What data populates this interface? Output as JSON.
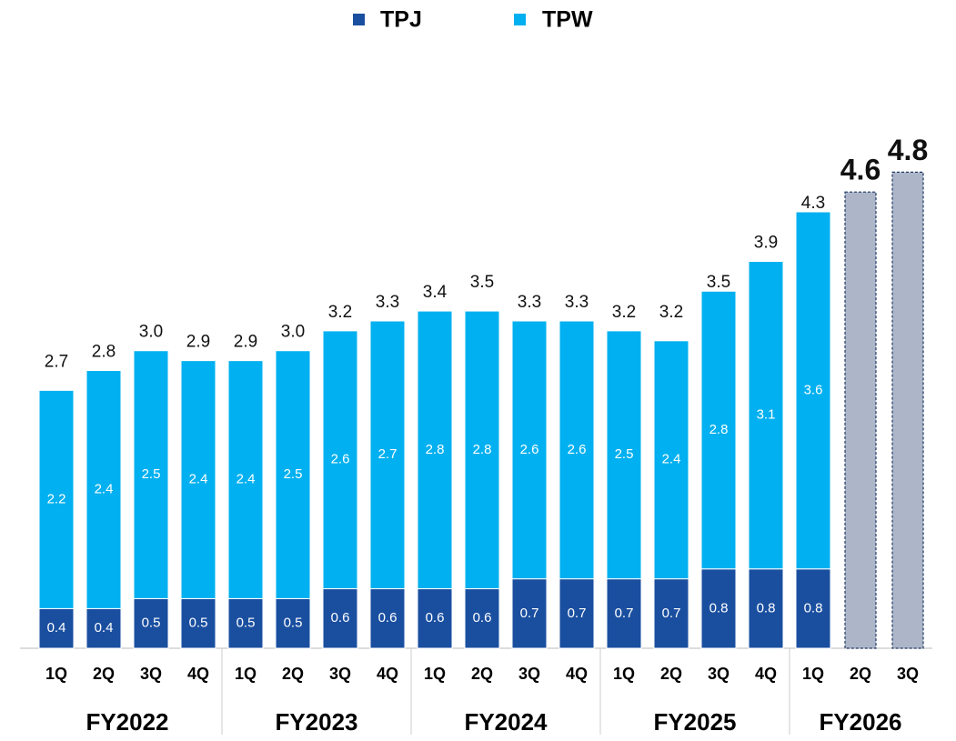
{
  "chart_data": {
    "type": "stacked_bar",
    "groups": [
      {
        "label": "FY2022",
        "categories": [
          "1Q",
          "2Q",
          "3Q",
          "4Q"
        ]
      },
      {
        "label": "FY2023",
        "categories": [
          "1Q",
          "2Q",
          "3Q",
          "4Q"
        ]
      },
      {
        "label": "FY2024",
        "categories": [
          "1Q",
          "2Q",
          "3Q",
          "4Q"
        ]
      },
      {
        "label": "FY2025",
        "categories": [
          "1Q",
          "2Q",
          "3Q",
          "4Q"
        ]
      },
      {
        "label": "FY2026",
        "categories": [
          "1Q",
          "2Q",
          "3Q"
        ]
      }
    ],
    "series": [
      {
        "name": "TPJ",
        "color": "#1a4fa0",
        "values": [
          0.4,
          0.4,
          0.5,
          0.5,
          0.5,
          0.5,
          0.6,
          0.6,
          0.6,
          0.6,
          0.7,
          0.7,
          0.7,
          0.7,
          0.8,
          0.8,
          0.8,
          null,
          null
        ]
      },
      {
        "name": "TPW",
        "color": "#00b0f0",
        "values": [
          2.2,
          2.4,
          2.5,
          2.4,
          2.4,
          2.5,
          2.6,
          2.7,
          2.8,
          2.8,
          2.6,
          2.6,
          2.5,
          2.4,
          2.8,
          3.1,
          3.6,
          null,
          null
        ]
      }
    ],
    "totals": {
      "values": [
        2.7,
        2.8,
        3.0,
        2.9,
        2.9,
        3.0,
        3.2,
        3.3,
        3.4,
        3.5,
        3.3,
        3.3,
        3.2,
        3.2,
        3.5,
        3.9,
        4.3,
        4.6,
        4.8
      ],
      "value_labels": [
        "2.7",
        "2.8",
        "3.0",
        "2.9",
        "2.9",
        "3.0",
        "3.2",
        "3.3",
        "3.4",
        "3.5",
        "3.3",
        "3.3",
        "3.2",
        "3.2",
        "3.5",
        "3.9",
        "4.3",
        "4.6",
        "4.8"
      ]
    },
    "forecast_color": "#adb6c8",
    "ylim": [
      0,
      5.5
    ]
  }
}
